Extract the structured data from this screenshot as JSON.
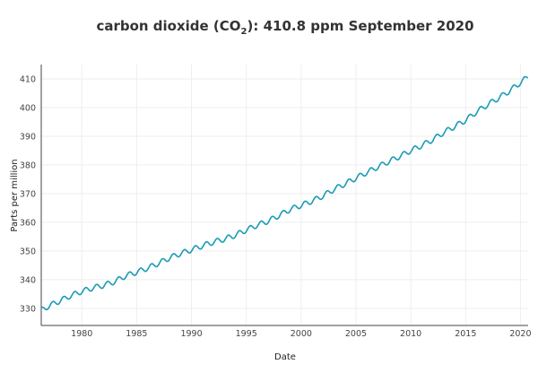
{
  "chart_data": {
    "type": "line",
    "title_main": "carbon dioxide (CO",
    "title_sub": "2",
    "title_rest": "): 410.8 ppm September 2020",
    "xlabel": "Date",
    "ylabel": "Parts per million",
    "xlim": [
      1976.3,
      2020.7
    ],
    "ylim": [
      324,
      415
    ],
    "x_ticks": [
      1980,
      1985,
      1990,
      1995,
      2000,
      2005,
      2010,
      2015,
      2020
    ],
    "x_tick_labels": [
      "1980",
      "1985",
      "1990",
      "1995",
      "2000",
      "2005",
      "2010",
      "2015",
      "2020"
    ],
    "y_ticks": [
      330,
      340,
      350,
      360,
      370,
      380,
      390,
      400,
      410
    ],
    "y_tick_labels": [
      "330",
      "340",
      "350",
      "360",
      "370",
      "380",
      "390",
      "400",
      "410"
    ],
    "grid": true,
    "line_color": "#1a9bb5",
    "seasonal_amplitude": 0.9,
    "series": [
      {
        "name": "CO2",
        "x": [
          1976.3,
          1977,
          1978,
          1979,
          1980,
          1981,
          1982,
          1983,
          1984,
          1985,
          1986,
          1987,
          1988,
          1989,
          1990,
          1991,
          1992,
          1993,
          1994,
          1995,
          1996,
          1997,
          1998,
          1999,
          2000,
          2001,
          2002,
          2003,
          2004,
          2005,
          2006,
          2007,
          2008,
          2009,
          2010,
          2011,
          2012,
          2013,
          2014,
          2015,
          2016,
          2017,
          2018,
          2019,
          2020,
          2020.7
        ],
        "y": [
          329.3,
          330.8,
          332.6,
          334.4,
          335.9,
          337.1,
          338.0,
          339.3,
          341.3,
          342.6,
          344.0,
          345.7,
          347.6,
          349.1,
          350.4,
          351.8,
          353.1,
          354.1,
          355.5,
          357.3,
          359.0,
          360.4,
          362.4,
          364.5,
          365.9,
          367.4,
          369.2,
          371.5,
          373.4,
          375.4,
          377.4,
          379.3,
          381.2,
          383.0,
          385.0,
          386.8,
          388.8,
          391.3,
          393.4,
          395.6,
          398.5,
          401.0,
          403.3,
          405.8,
          408.7,
          410.8
        ]
      }
    ]
  }
}
